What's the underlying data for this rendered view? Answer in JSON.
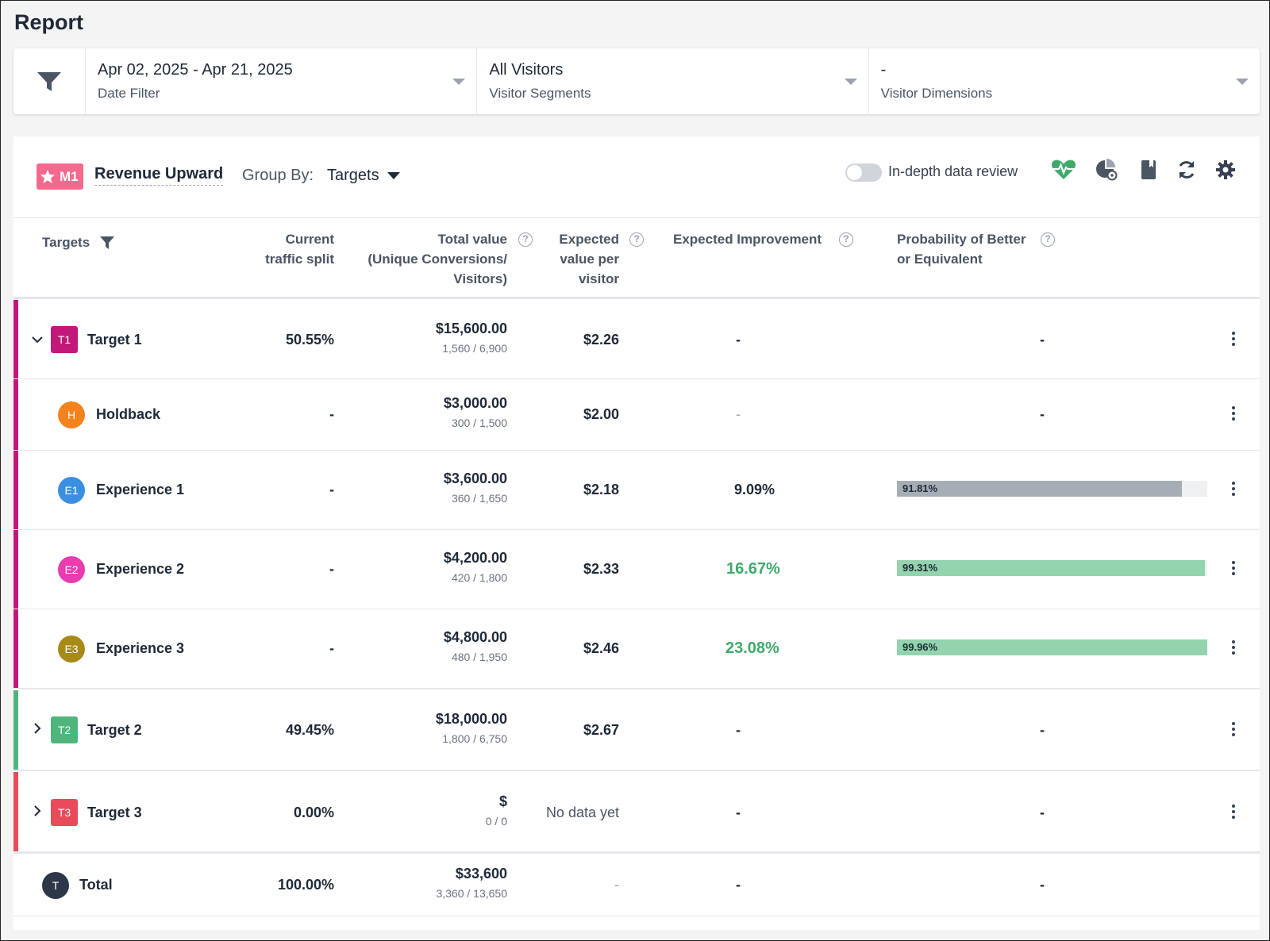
{
  "page": {
    "title": "Report"
  },
  "filters": {
    "date": {
      "value": "Apr 02, 2025 - Apr 21, 2025",
      "label": "Date Filter"
    },
    "segments": {
      "value": "All Visitors",
      "label": "Visitor Segments"
    },
    "dimensions": {
      "value": "-",
      "label": "Visitor Dimensions"
    }
  },
  "toolbar": {
    "metric_badge": "M1",
    "metric_name": "Revenue Upward",
    "group_by_label": "Group By:",
    "group_by_value": "Targets",
    "toggle_label": "In-depth data review",
    "toggle_on": false,
    "icons": [
      "heartbeat-icon",
      "pie-settings-icon",
      "bookmark-icon",
      "refresh-icon",
      "gear-icon"
    ]
  },
  "columns": {
    "targets": "Targets",
    "split_1": "Current",
    "split_2": "traffic split",
    "total_1": "Total value",
    "total_2": "(Unique Conversions/",
    "total_3": "Visitors)",
    "evpv_1": "Expected",
    "evpv_2": "value per",
    "evpv_3": "visitor",
    "improvement": "Expected Improvement",
    "prob_1": "Probability of Better",
    "prob_2": "or Equivalent",
    "help": "?"
  },
  "colors": {
    "target1": "#c2187a",
    "target2": "#4fb57c",
    "target3": "#e84b5a",
    "holdback": "#f4821f",
    "experience1": "#3b8fe0",
    "experience2": "#e83cb0",
    "experience3": "#a88a16",
    "total": "#2d3748",
    "prob_gray": "#a6adb5",
    "prob_green": "#93d3ad",
    "improvement_green": "#3daa6b"
  },
  "rows": {
    "t1": {
      "badge": "T1",
      "name": "Target 1",
      "split": "50.55%",
      "value": "$15,600.00",
      "counts": "1,560 / 6,900",
      "evpv": "$2.26",
      "improvement": "-",
      "prob": "-"
    },
    "holdback": {
      "badge": "H",
      "name": "Holdback",
      "split": "-",
      "value": "$3,000.00",
      "counts": "300 / 1,500",
      "evpv": "$2.00",
      "improvement": "-",
      "prob": "-"
    },
    "e1": {
      "badge": "E1",
      "name": "Experience 1",
      "split": "-",
      "value": "$3,600.00",
      "counts": "360 / 1,650",
      "evpv": "$2.18",
      "improvement": "9.09%",
      "prob": "91.81%",
      "prob_value": 91.81
    },
    "e2": {
      "badge": "E2",
      "name": "Experience 2",
      "split": "-",
      "value": "$4,200.00",
      "counts": "420 / 1,800",
      "evpv": "$2.33",
      "improvement": "16.67%",
      "prob": "99.31%",
      "prob_value": 99.31
    },
    "e3": {
      "badge": "E3",
      "name": "Experience 3",
      "split": "-",
      "value": "$4,800.00",
      "counts": "480 / 1,950",
      "evpv": "$2.46",
      "improvement": "23.08%",
      "prob": "99.96%",
      "prob_value": 99.96
    },
    "t2": {
      "badge": "T2",
      "name": "Target 2",
      "split": "49.45%",
      "value": "$18,000.00",
      "counts": "1,800 / 6,750",
      "evpv": "$2.67",
      "improvement": "-",
      "prob": "-"
    },
    "t3": {
      "badge": "T3",
      "name": "Target 3",
      "split": "0.00%",
      "value": "$",
      "counts": "0 / 0",
      "evpv": "No data yet",
      "improvement": "-",
      "prob": "-"
    },
    "total": {
      "badge": "T",
      "name": "Total",
      "split": "100.00%",
      "value": "$33,600",
      "counts": "3,360 / 13,650",
      "evpv": "-",
      "improvement": "-",
      "prob": "-"
    }
  }
}
